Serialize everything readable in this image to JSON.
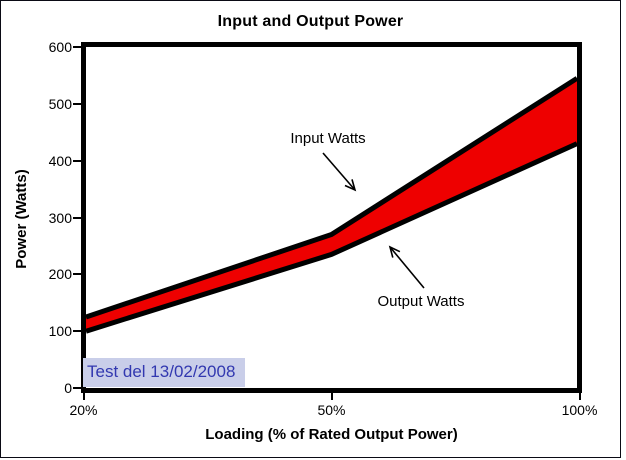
{
  "chart_data": {
    "type": "area",
    "title": "Input and Output Power",
    "xlabel": "Loading (% of Rated Output Power)",
    "ylabel": "Power (Watts)",
    "categories": [
      "20%",
      "50%",
      "100%"
    ],
    "x_ticks": [
      "20%",
      "50%",
      "100%"
    ],
    "y_ticks": [
      0,
      100,
      200,
      300,
      400,
      500,
      600
    ],
    "ylim": [
      0,
      600
    ],
    "series": [
      {
        "name": "Input Watts",
        "values": [
          125,
          270,
          545
        ]
      },
      {
        "name": "Output Watts",
        "values": [
          100,
          235,
          430
        ]
      }
    ],
    "band_between_series": true,
    "grid": "off",
    "legend_position": "none",
    "colors": {
      "band_fill": "#EE0000",
      "line": "#000000",
      "axis": "#000000",
      "text": "#000000"
    }
  },
  "annotations": {
    "input_label": "Input Watts",
    "output_label": "Output Watts",
    "test_note": {
      "text": "Test del 13/02/2008",
      "text_color": "#3238B0",
      "highlight_color": "#C9CEE9"
    }
  }
}
